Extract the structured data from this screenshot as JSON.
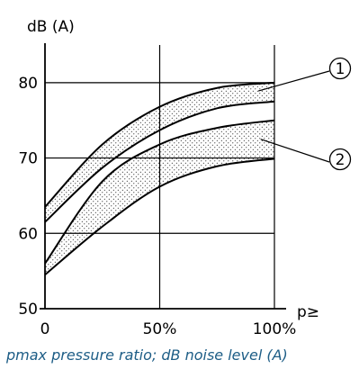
{
  "caption": "pmax pressure ratio; dB noise level (A)",
  "chart_data": {
    "type": "area",
    "ylabel": "dB (A)",
    "xlabel": "p≥",
    "xlim": [
      0,
      100
    ],
    "ylim": [
      50,
      85
    ],
    "x_ticks": [
      "0",
      "50%",
      "100%"
    ],
    "y_ticks": [
      "50",
      "60",
      "70",
      "80"
    ],
    "grid": true,
    "series": [
      {
        "name": "1",
        "upper": {
          "x": [
            0,
            25,
            50,
            75,
            100
          ],
          "y": [
            63.5,
            71.8,
            76.8,
            79.3,
            80.0
          ]
        },
        "lower": {
          "x": [
            0,
            25,
            50,
            75,
            100
          ],
          "y": [
            61.5,
            68.7,
            73.7,
            76.6,
            77.5
          ]
        }
      },
      {
        "name": "2",
        "upper": {
          "x": [
            0,
            25,
            50,
            75,
            100
          ],
          "y": [
            56.0,
            66.9,
            71.8,
            74.0,
            75.0
          ]
        },
        "lower": {
          "x": [
            0,
            25,
            50,
            75,
            100
          ],
          "y": [
            54.5,
            60.9,
            66.2,
            68.9,
            69.9
          ]
        }
      }
    ],
    "band_fill": "stippled",
    "line_color": "#000000",
    "caption_color": "#1d5d86"
  }
}
